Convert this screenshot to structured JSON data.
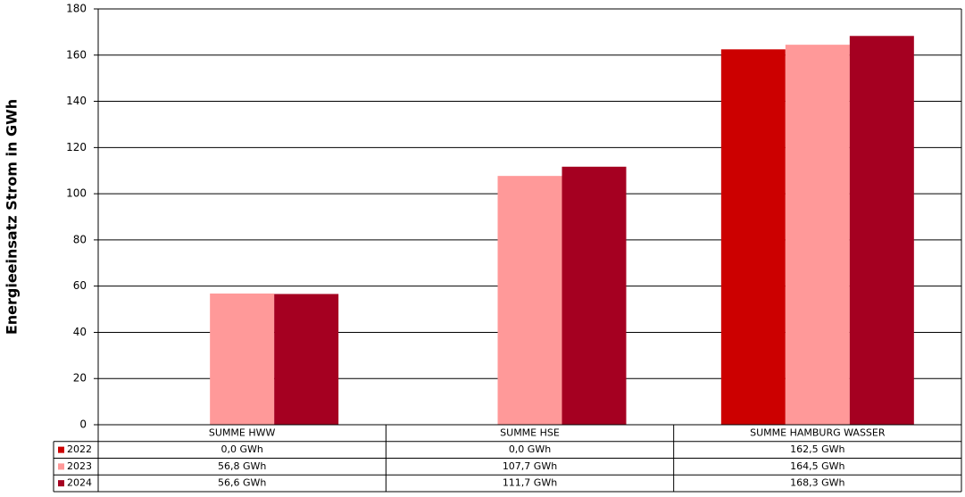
{
  "chart_data": {
    "type": "bar",
    "y_label": "Energieeinsatz Strom  in GWh",
    "categories": [
      "SUMME HWW",
      "SUMME HSE",
      "SUMME HAMBURG WASSER"
    ],
    "series": [
      {
        "name": "2022",
        "color": "#cc0000",
        "values": [
          0,
          0,
          162.5
        ],
        "value_labels": [
          "0,0 GWh",
          "0,0 GWh",
          "162,5 GWh"
        ]
      },
      {
        "name": "2023",
        "color": "#ff9999",
        "values": [
          56.8,
          107.7,
          164.5
        ],
        "value_labels": [
          "56,8 GWh",
          "107,7 GWh",
          "164,5 GWh"
        ]
      },
      {
        "name": "2024",
        "color": "#a50021",
        "values": [
          56.6,
          111.7,
          168.3
        ],
        "value_labels": [
          "56,6 GWh",
          "111,7 GWh",
          "168,3 GWh"
        ]
      }
    ],
    "ylim": [
      0,
      180
    ],
    "yticks": [
      0,
      20,
      40,
      60,
      80,
      100,
      120,
      140,
      160,
      180
    ],
    "grid": true
  }
}
